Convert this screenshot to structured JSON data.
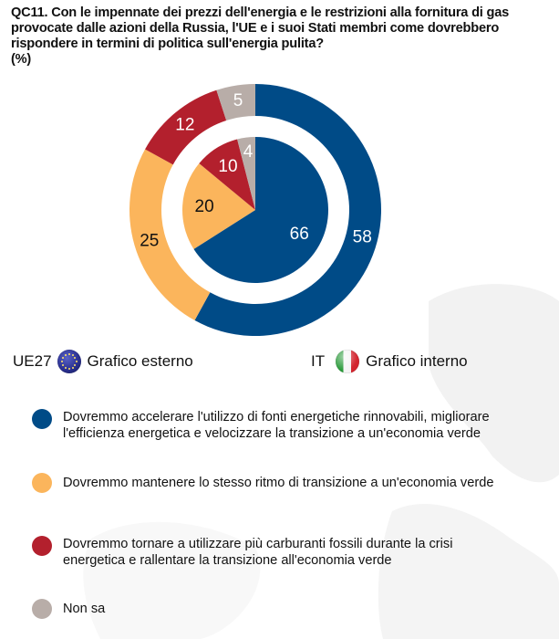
{
  "title": {
    "question": "QC11. Con le impennate dei prezzi dell'energia e le restrizioni alla fornitura di gas provocate dalle azioni della Russia, l'UE e i suoi Stati membri come dovrebbero rispondere in termini di politica sull'energia pulita?",
    "unit": "(%)"
  },
  "legend_top": {
    "outer": {
      "code": "UE27",
      "flag_icon": "eu-flag-icon",
      "label": "Grafico esterno"
    },
    "inner": {
      "code": "IT",
      "flag_icon": "italy-flag-icon",
      "label": "Grafico interno"
    }
  },
  "chart_data": {
    "type": "pie",
    "subtype": "nested-donut",
    "title": "QC11. Con le impennate dei prezzi dell'energia e le restrizioni alla fornitura di gas provocate dalle azioni della Russia, l'UE e i suoi Stati membri come dovrebbero rispondere in termini di politica sull'energia pulita?",
    "unit": "%",
    "categories": [
      "Dovremmo accelerare l'utilizzo di fonti energetiche rinnovabili, migliorare l'efficienza energetica e velocizzare la transizione a un'economia verde",
      "Dovremmo mantenere lo stesso ritmo di transizione a un'economia verde",
      "Dovremmo tornare a utilizzare più carburanti fossili durante la crisi energetica e rallentare la transizione all'economia verde",
      "Non sa"
    ],
    "colors": [
      "#004b87",
      "#fbb55c",
      "#b3202d",
      "#b8ada8"
    ],
    "label_colors": [
      "#ffffff",
      "#111111",
      "#ffffff",
      "#ffffff"
    ],
    "series": [
      {
        "name": "UE27",
        "ring": "outer",
        "legend_label": "Grafico esterno",
        "values": [
          58,
          25,
          12,
          5
        ]
      },
      {
        "name": "IT",
        "ring": "inner",
        "legend_label": "Grafico interno",
        "values": [
          66,
          20,
          10,
          4
        ]
      }
    ],
    "start_angle": "12 o'clock",
    "direction": "clockwise",
    "legend": "bottom"
  }
}
